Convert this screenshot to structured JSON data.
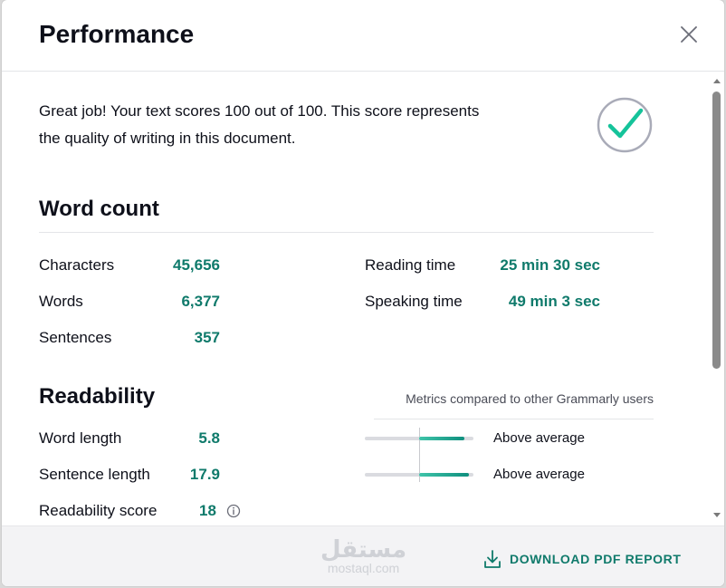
{
  "header": {
    "title": "Performance"
  },
  "intro": {
    "line1": "Great job! Your text scores 100 out of 100. This score represents",
    "line2": "the quality of writing in this document."
  },
  "score": {
    "value": 100,
    "max": 100
  },
  "word_count": {
    "title": "Word count",
    "stats": [
      {
        "label": "Characters",
        "value": "45,656"
      },
      {
        "label": "Words",
        "value": "6,377"
      },
      {
        "label": "Sentences",
        "value": "357"
      }
    ],
    "times": [
      {
        "label": "Reading time",
        "value": "25 min 30 sec"
      },
      {
        "label": "Speaking time",
        "value": "49 min 3 sec"
      }
    ]
  },
  "readability": {
    "title": "Readability",
    "note": "Metrics compared to other Grammarly users",
    "stats": [
      {
        "label": "Word length",
        "value": "5.8",
        "comparison": "Above average",
        "bar_level": 0.92
      },
      {
        "label": "Sentence length",
        "value": "17.9",
        "comparison": "Above average",
        "bar_level": 0.96
      },
      {
        "label": "Readability score",
        "value": "18"
      }
    ]
  },
  "footer": {
    "download_label": "DOWNLOAD PDF REPORT",
    "watermark_arabic": "مستقل",
    "watermark_latin": "mostaql.com"
  },
  "icons": {
    "close": "close-icon",
    "check": "check-circle-icon",
    "info": "info-icon",
    "download": "download-icon"
  },
  "colors": {
    "accent": "#0f7a6b",
    "check": "#15c39a",
    "ring": "#a9abb8",
    "bar_track": "#dadbe0"
  }
}
